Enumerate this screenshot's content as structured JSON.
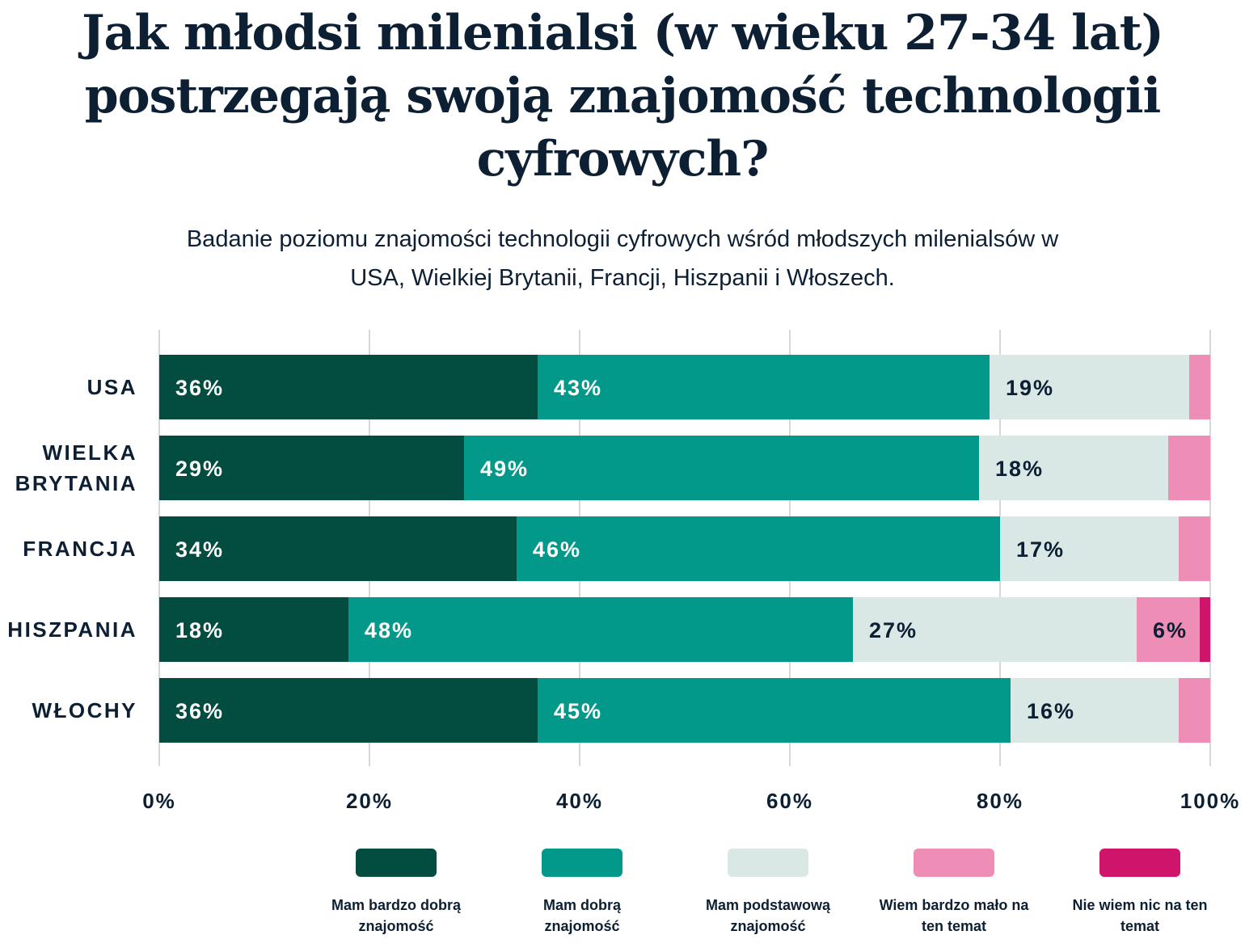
{
  "title": "Jak młodsi milenialsi (w wieku 27-34 lat) postrzegają swoją znajomość technologii cyfrowych?",
  "subtitle": "Badanie poziomu znajomości technologii cyfrowych wśród młodszych milenialsów w USA, Wielkiej Brytanii, Francji, Hiszpanii i Włoszech.",
  "chart_data": {
    "type": "bar",
    "orientation": "horizontal",
    "stacked": true,
    "categories": [
      "USA",
      "WIELKA BRYTANIA",
      "FRANCJA",
      "HISZPANIA",
      "WŁOCHY"
    ],
    "series": [
      {
        "name": "Mam bardzo dobrą znajomość",
        "color": "#024d3f",
        "values": [
          36,
          29,
          34,
          18,
          36
        ]
      },
      {
        "name": "Mam dobrą znajomość",
        "color": "#02998a",
        "values": [
          43,
          49,
          46,
          48,
          45
        ]
      },
      {
        "name": "Mam podstawową znajomość",
        "color": "#d9e7e5",
        "values": [
          19,
          18,
          17,
          27,
          16
        ]
      },
      {
        "name": "Wiem bardzo mało na ten temat",
        "color": "#ee8db5",
        "values": [
          2,
          4,
          3,
          6,
          3
        ]
      },
      {
        "name": "Nie wiem nic na ten temat",
        "color": "#cf156b",
        "values": [
          0,
          0,
          0,
          1,
          0
        ]
      }
    ],
    "xlim": [
      0,
      100
    ],
    "xticks": [
      "0%",
      "20%",
      "40%",
      "60%",
      "80%",
      "100%"
    ],
    "grid": true,
    "legend": "bottom"
  }
}
